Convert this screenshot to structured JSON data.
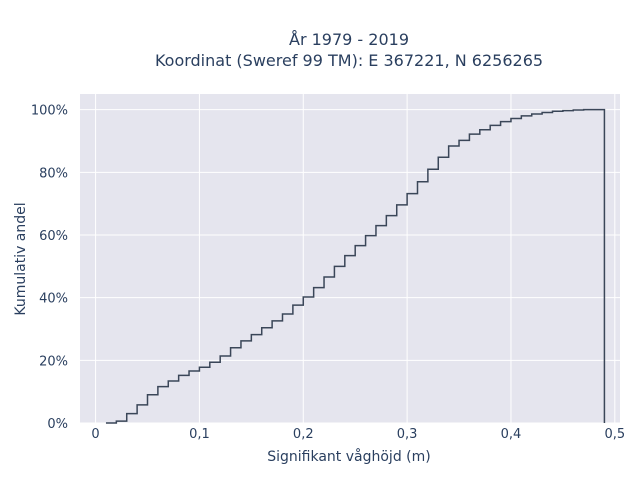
{
  "title_line1": "År 1979 - 2019",
  "title_line2": "Koordinat (Sweref 99 TM): E 367221, N 6256265",
  "chart_data": {
    "type": "line",
    "step": "hv",
    "title": "År 1979 - 2019\nKoordinat (Sweref 99 TM): E 367221, N 6256265",
    "xlabel": "Signifikant våghöjd (m)",
    "ylabel": "Kumulativ andel",
    "xlim": [
      -0.015,
      0.505
    ],
    "ylim": [
      0,
      1.05
    ],
    "xticks": [
      0,
      0.1,
      0.2,
      0.3,
      0.4,
      0.5
    ],
    "xtick_labels": [
      "0",
      "0,1",
      "0,2",
      "0,3",
      "0,4",
      "0,5"
    ],
    "yticks": [
      0,
      0.2,
      0.4,
      0.6,
      0.8,
      1.0
    ],
    "ytick_labels": [
      "0%",
      "20%",
      "40%",
      "60%",
      "80%",
      "100%"
    ],
    "grid": true,
    "legend": "none",
    "colors": {
      "line": "#3a4658",
      "plot_bg": "#e5e5ee",
      "grid": "#ffffff",
      "text": "#2a3f5f"
    },
    "series": [
      {
        "x": [
          0.01,
          0.02,
          0.03,
          0.04,
          0.05,
          0.06,
          0.07,
          0.08,
          0.09,
          0.1,
          0.11,
          0.12,
          0.13,
          0.14,
          0.15,
          0.16,
          0.17,
          0.18,
          0.19,
          0.2,
          0.21,
          0.22,
          0.23,
          0.24,
          0.25,
          0.26,
          0.27,
          0.28,
          0.29,
          0.3,
          0.31,
          0.32,
          0.33,
          0.34,
          0.35,
          0.36,
          0.37,
          0.38,
          0.39,
          0.4,
          0.41,
          0.42,
          0.43,
          0.44,
          0.45,
          0.46,
          0.47,
          0.48,
          0.49
        ],
        "y": [
          0.0,
          0.006,
          0.03,
          0.058,
          0.09,
          0.116,
          0.134,
          0.152,
          0.166,
          0.178,
          0.194,
          0.214,
          0.24,
          0.262,
          0.282,
          0.304,
          0.326,
          0.348,
          0.376,
          0.402,
          0.432,
          0.466,
          0.5,
          0.534,
          0.566,
          0.598,
          0.63,
          0.662,
          0.696,
          0.732,
          0.77,
          0.81,
          0.848,
          0.884,
          0.902,
          0.922,
          0.936,
          0.95,
          0.962,
          0.972,
          0.98,
          0.986,
          0.991,
          0.995,
          0.997,
          0.999,
          1.0,
          1.0,
          1.0
        ]
      }
    ]
  }
}
